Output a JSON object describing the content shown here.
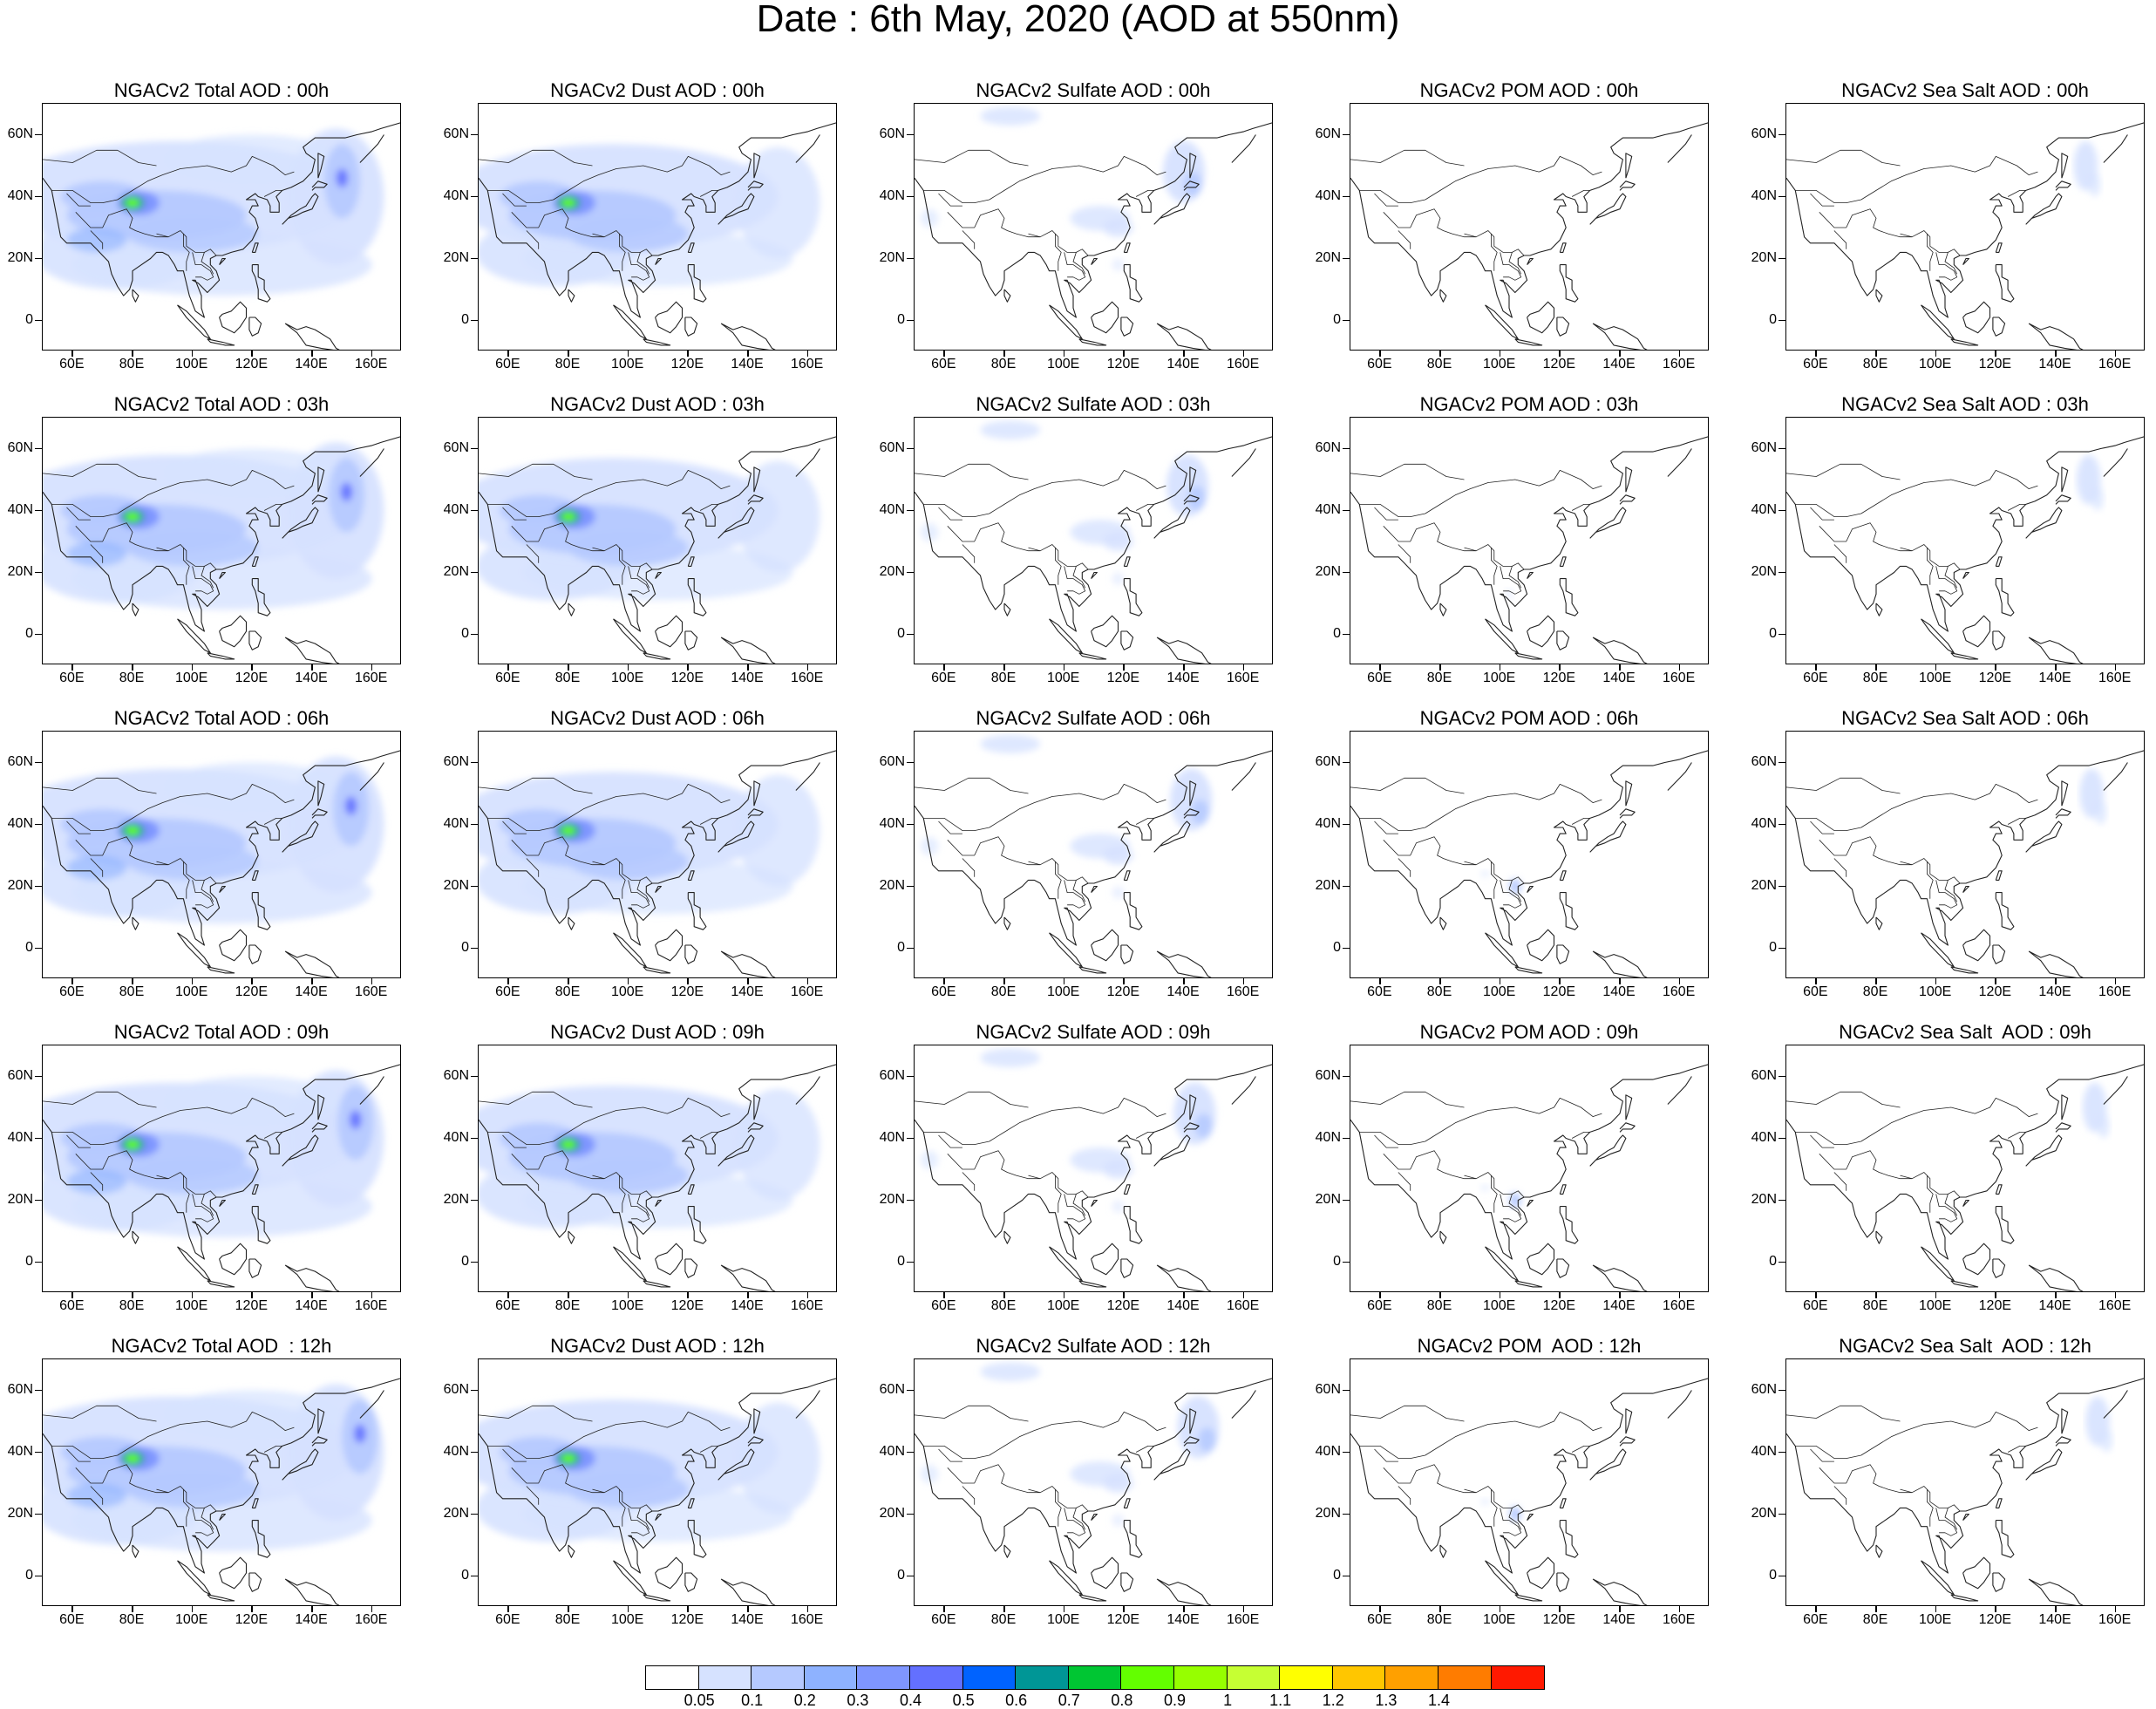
{
  "title": "Date : 6th May, 2020 (AOD at 550nm)",
  "columns": [
    "total",
    "dust",
    "sulfate",
    "pom",
    "seasalt"
  ],
  "panel_titles": [
    [
      "NGACv2 Total AOD : 00h",
      "NGACv2 Dust AOD : 00h",
      "NGACv2 Sulfate AOD : 00h",
      "NGACv2 POM AOD : 00h",
      "NGACv2 Sea Salt AOD : 00h"
    ],
    [
      "NGACv2 Total AOD : 03h",
      "NGACv2 Dust AOD : 03h",
      "NGACv2 Sulfate AOD : 03h",
      "NGACv2 POM AOD : 03h",
      "NGACv2 Sea Salt AOD : 03h"
    ],
    [
      "NGACv2 Total AOD : 06h",
      "NGACv2 Dust AOD : 06h",
      "NGACv2 Sulfate AOD : 06h",
      "NGACv2 POM AOD : 06h",
      "NGACv2 Sea Salt AOD : 06h"
    ],
    [
      "NGACv2 Total AOD : 09h",
      "NGACv2 Dust AOD : 09h",
      "NGACv2 Sulfate AOD : 09h",
      "NGACv2 POM AOD : 09h",
      "NGACv2 Sea Salt  AOD : 09h"
    ],
    [
      "NGACv2 Total AOD  : 12h",
      "NGACv2 Dust AOD : 12h",
      "NGACv2 Sulfate AOD : 12h",
      "NGACv2 POM  AOD : 12h",
      "NGACv2 Sea Salt  AOD : 12h"
    ]
  ],
  "lat_labels": [
    "60N",
    "40N",
    "20N",
    "0"
  ],
  "lon_labels": [
    "60E",
    "80E",
    "100E",
    "120E",
    "140E",
    "160E"
  ],
  "colorbar": {
    "colors": [
      "#ffffff",
      "#d6e2ff",
      "#b5c9ff",
      "#8eb2ff",
      "#7f96ff",
      "#6370ff",
      "#0063ff",
      "#009696",
      "#00c633",
      "#63ff00",
      "#96ff00",
      "#c6ff33",
      "#ffff00",
      "#ffc600",
      "#ffa000",
      "#ff7c00",
      "#ff1900"
    ],
    "labels": [
      "0.05",
      "0.1",
      "0.2",
      "0.3",
      "0.4",
      "0.5",
      "0.6",
      "0.7",
      "0.8",
      "0.9",
      "1",
      "1.1",
      "1.2",
      "1.3",
      "1.4"
    ]
  }
}
